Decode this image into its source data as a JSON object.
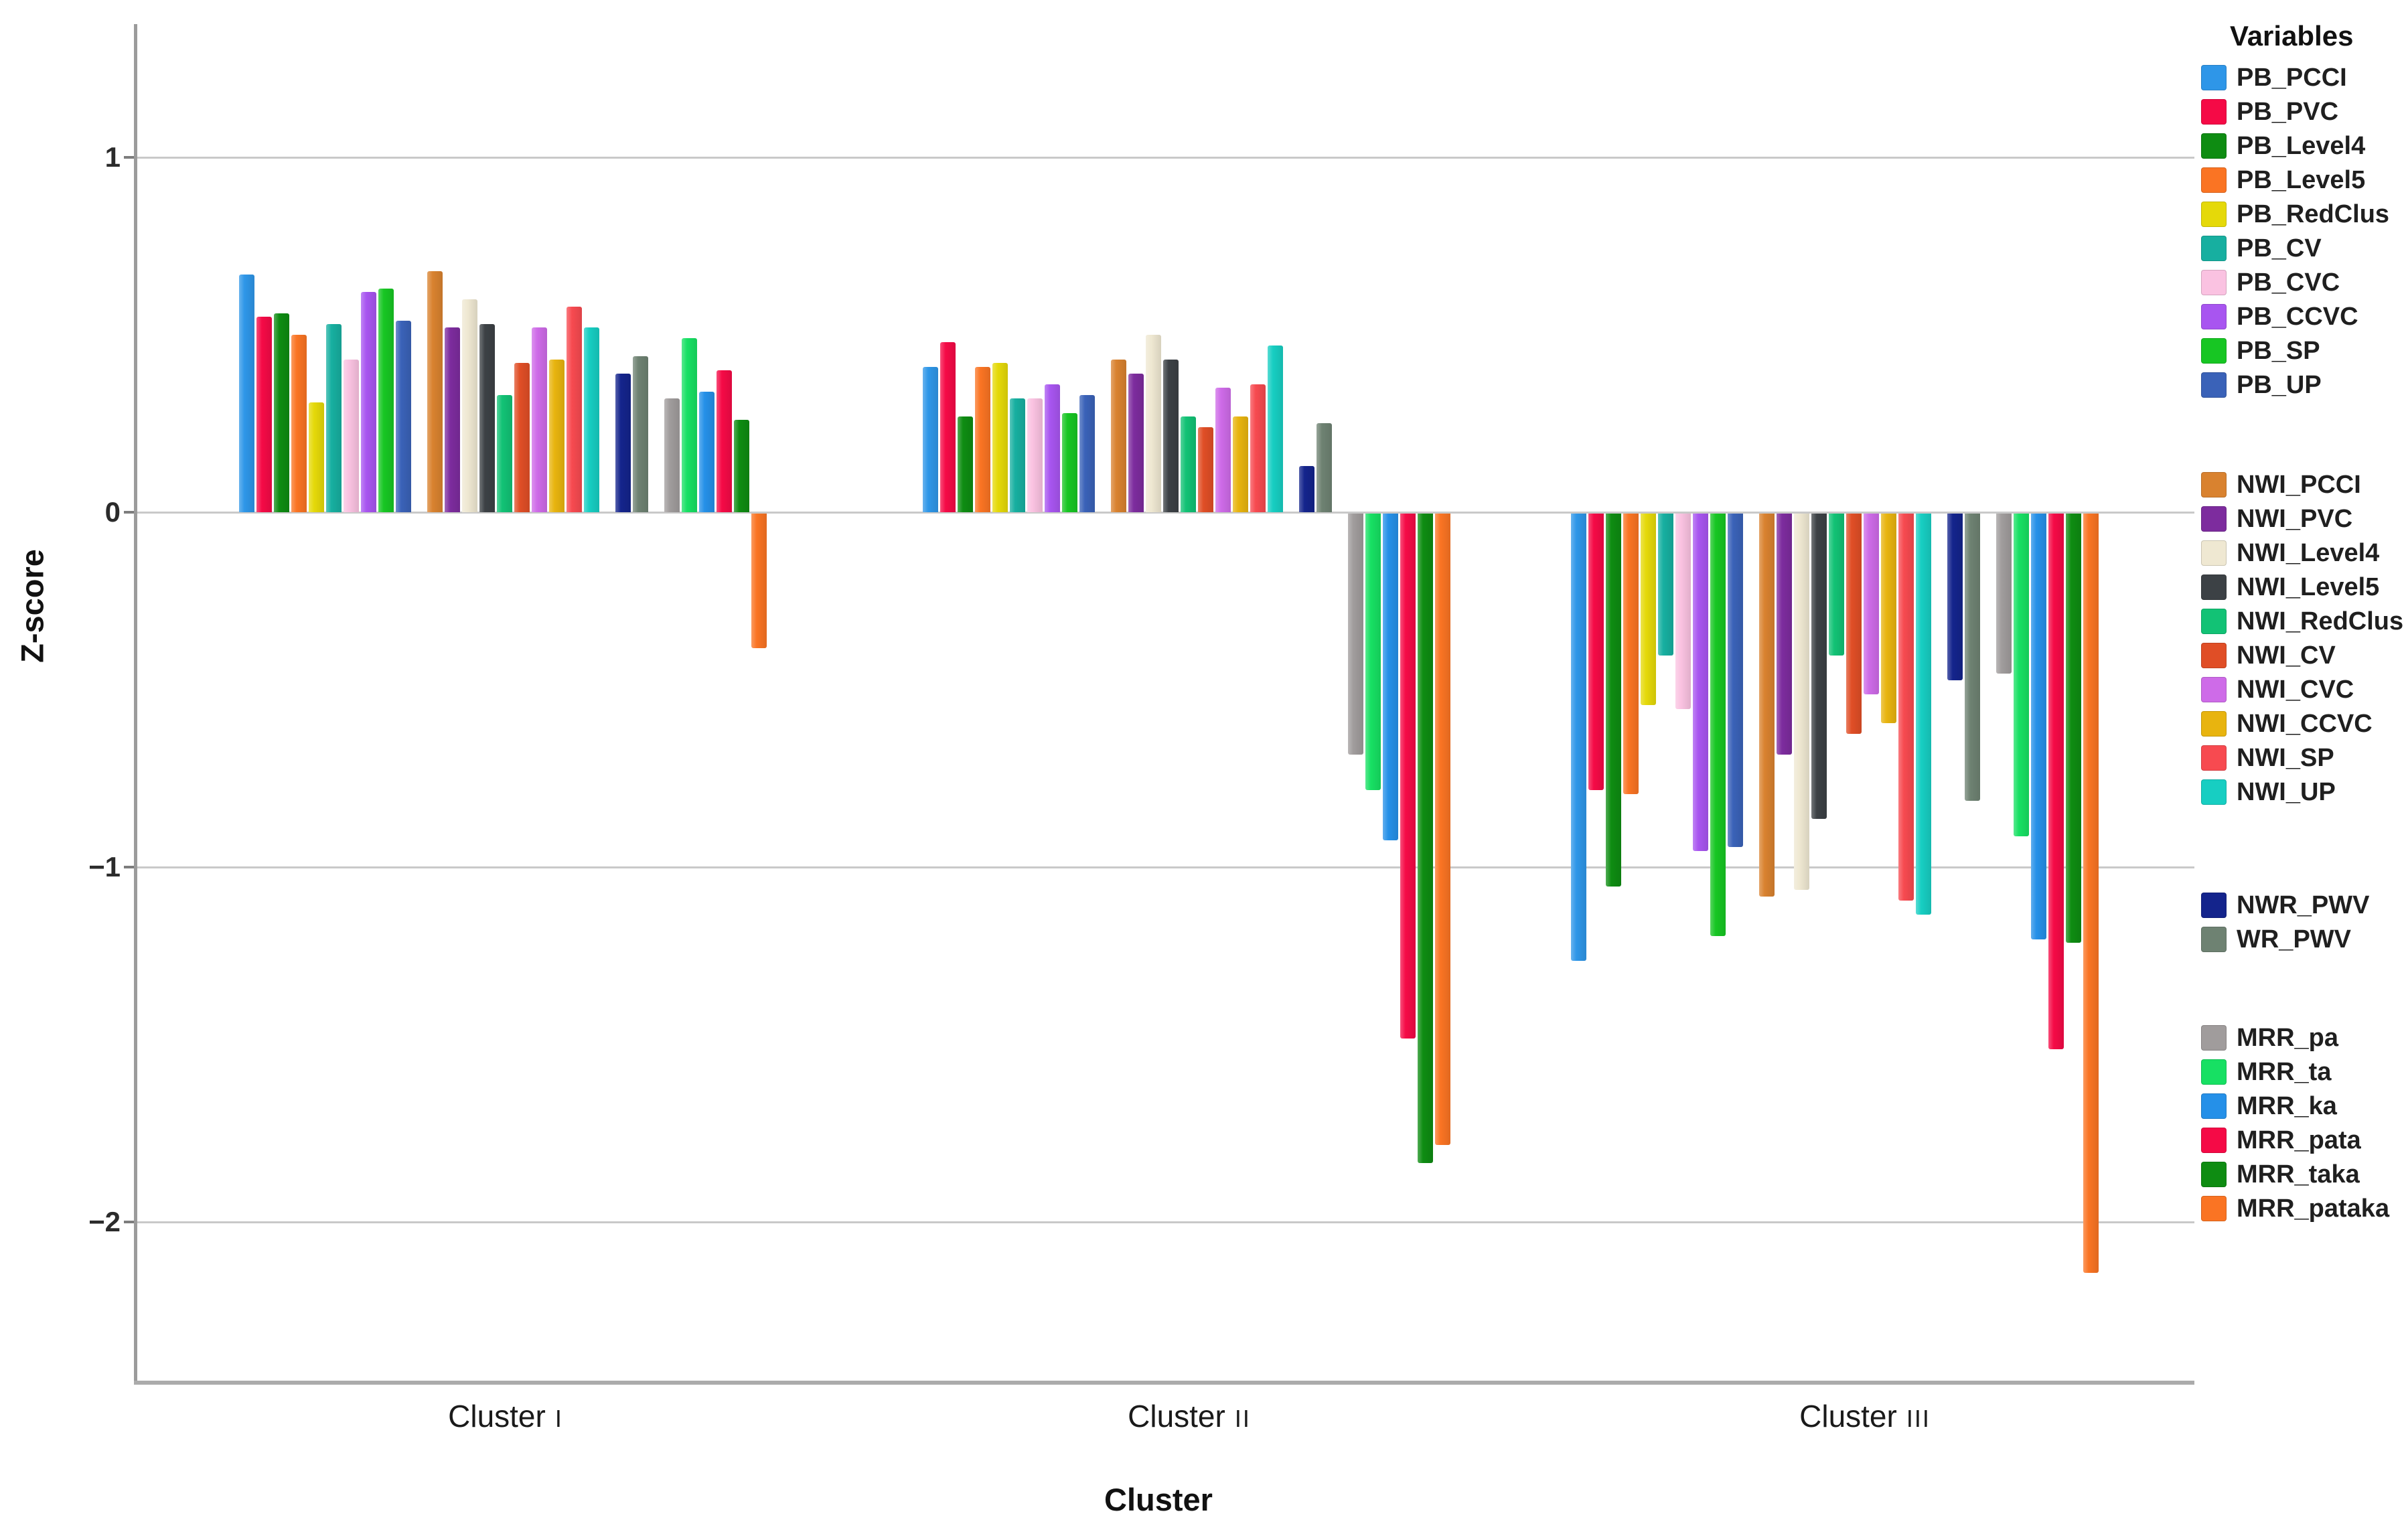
{
  "legend": {
    "title": "Variables"
  },
  "chart_data": {
    "type": "bar",
    "title": "",
    "xlabel": "Cluster",
    "ylabel": "Z-score",
    "ylim": [
      -2.45,
      1.38
    ],
    "grid": "on",
    "legend_position": "right",
    "categories": [
      {
        "label": "Cluster",
        "numeral": "I"
      },
      {
        "label": "Cluster",
        "numeral": "II"
      },
      {
        "label": "Cluster",
        "numeral": "III"
      }
    ],
    "y_ticks": [
      {
        "value": 1,
        "label": "1"
      },
      {
        "value": 0,
        "label": "0"
      },
      {
        "value": -1,
        "label": "−1"
      },
      {
        "value": -2,
        "label": "−2"
      }
    ],
    "series": [
      {
        "name": "PB_PCCI",
        "group": "PB",
        "color": "#2E96E8",
        "values": [
          0.67,
          0.41,
          -1.26
        ]
      },
      {
        "name": "PB_PVC",
        "group": "PB",
        "color": "#F50A46",
        "values": [
          0.55,
          0.48,
          -0.78
        ]
      },
      {
        "name": "PB_Level4",
        "group": "PB",
        "color": "#0E8C12",
        "values": [
          0.56,
          0.27,
          -1.05
        ]
      },
      {
        "name": "PB_Level5",
        "group": "PB",
        "color": "#FA7423",
        "values": [
          0.5,
          0.41,
          -0.79
        ]
      },
      {
        "name": "PB_RedClus",
        "group": "PB",
        "color": "#E5D909",
        "values": [
          0.31,
          0.42,
          -0.54
        ]
      },
      {
        "name": "PB_CV",
        "group": "PB",
        "color": "#17AFA0",
        "values": [
          0.53,
          0.32,
          -0.4
        ]
      },
      {
        "name": "PB_CVC",
        "group": "PB",
        "color": "#FAC2E1",
        "values": [
          0.43,
          0.32,
          -0.55
        ]
      },
      {
        "name": "PB_CCVC",
        "group": "PB",
        "color": "#A855F0",
        "values": [
          0.62,
          0.36,
          -0.95
        ]
      },
      {
        "name": "PB_SP",
        "group": "PB",
        "color": "#17C623",
        "values": [
          0.63,
          0.28,
          -1.19
        ]
      },
      {
        "name": "PB_UP",
        "group": "PB",
        "color": "#3A62B8",
        "values": [
          0.54,
          0.33,
          -0.94
        ]
      },
      {
        "name": "NWI_PCCI",
        "group": "NWI",
        "color": "#D9822F",
        "values": [
          0.68,
          0.43,
          -1.08
        ]
      },
      {
        "name": "NWI_PVC",
        "group": "NWI",
        "color": "#7D2C9E",
        "values": [
          0.52,
          0.39,
          -0.68
        ]
      },
      {
        "name": "NWI_Level4",
        "group": "NWI",
        "color": "#EFE8D2",
        "values": [
          0.6,
          0.5,
          -1.06
        ]
      },
      {
        "name": "NWI_Level5",
        "group": "NWI",
        "color": "#3C4145",
        "values": [
          0.53,
          0.43,
          -0.86
        ]
      },
      {
        "name": "NWI_RedClus",
        "group": "NWI",
        "color": "#12C275",
        "values": [
          0.33,
          0.27,
          -0.4
        ]
      },
      {
        "name": "NWI_CV",
        "group": "NWI",
        "color": "#E04E26",
        "values": [
          0.42,
          0.24,
          -0.62
        ]
      },
      {
        "name": "NWI_CVC",
        "group": "NWI",
        "color": "#CE6BE8",
        "values": [
          0.52,
          0.35,
          -0.51
        ]
      },
      {
        "name": "NWI_CCVC",
        "group": "NWI",
        "color": "#E8B40F",
        "values": [
          0.43,
          0.27,
          -0.59
        ]
      },
      {
        "name": "NWI_SP",
        "group": "NWI",
        "color": "#F74A50",
        "values": [
          0.58,
          0.36,
          -1.09
        ]
      },
      {
        "name": "NWI_UP",
        "group": "NWI",
        "color": "#17CEC2",
        "values": [
          0.52,
          0.47,
          -1.13
        ]
      },
      {
        "name": "NWR_PWV",
        "group": "PWV",
        "color": "#14248C",
        "values": [
          0.39,
          0.13,
          -0.47
        ]
      },
      {
        "name": "WR_PWV",
        "group": "PWV",
        "color": "#6E8272",
        "values": [
          0.44,
          0.25,
          -0.81
        ]
      },
      {
        "name": "MRR_pa",
        "group": "MRR",
        "color": "#A09C9C",
        "values": [
          0.32,
          -0.68,
          -0.45
        ]
      },
      {
        "name": "MRR_ta",
        "group": "MRR",
        "color": "#17E063",
        "values": [
          0.49,
          -0.78,
          -0.91
        ]
      },
      {
        "name": "MRR_ka",
        "group": "MRR",
        "color": "#2590E8",
        "values": [
          0.34,
          -0.92,
          -1.2
        ]
      },
      {
        "name": "MRR_pata",
        "group": "MRR",
        "color": "#F50A46",
        "values": [
          0.4,
          -1.48,
          -1.51
        ]
      },
      {
        "name": "MRR_taka",
        "group": "MRR",
        "color": "#0E8C12",
        "values": [
          0.26,
          -1.83,
          -1.21
        ]
      },
      {
        "name": "MRR_pataka",
        "group": "MRR",
        "color": "#FA7423",
        "values": [
          -0.38,
          -1.78,
          -2.14
        ]
      }
    ]
  }
}
